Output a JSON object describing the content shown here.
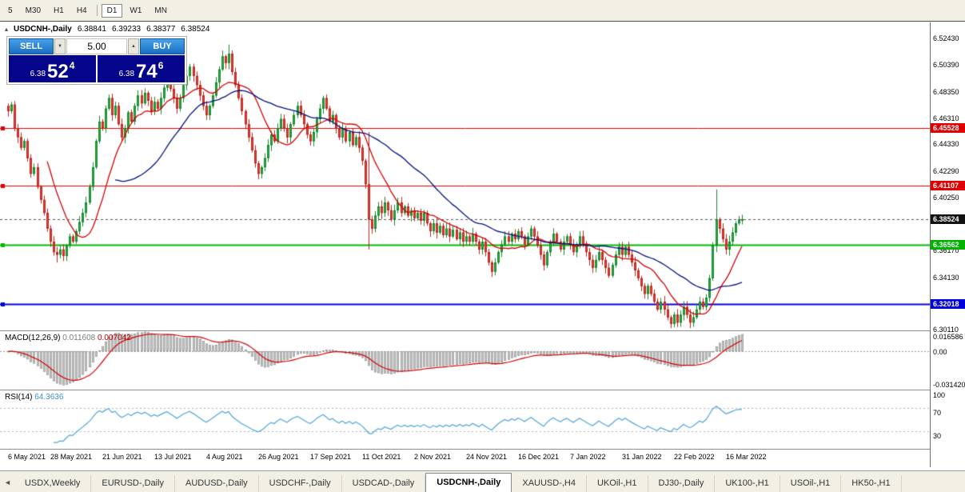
{
  "icons": {
    "collapse": "▴",
    "spin_up": "▲",
    "spin_down": "▼",
    "tab_nav_left": "◄"
  },
  "toolbar": {
    "items": [
      {
        "label": "5"
      },
      {
        "label": "M30"
      },
      {
        "label": "H1"
      },
      {
        "label": "H4"
      },
      {
        "divider": true
      },
      {
        "label": "D1",
        "active": true
      },
      {
        "label": "W1"
      },
      {
        "label": "MN"
      }
    ]
  },
  "chart_header": {
    "title": "USDCNH-,Daily",
    "open": "6.38841",
    "high": "6.39233",
    "low": "6.38377",
    "close": "6.38524"
  },
  "trade_panel": {
    "sell_label": "SELL",
    "buy_label": "BUY",
    "volume": "5.00",
    "sell_price": {
      "prefix": "6.38",
      "big": "52",
      "sup": "4"
    },
    "buy_price": {
      "prefix": "6.38",
      "big": "74",
      "sup": "6"
    }
  },
  "price_axis": {
    "ticks": [
      "6.52430",
      "6.50390",
      "6.48350",
      "6.46310",
      "6.44330",
      "6.42290",
      "6.40250",
      "6.36170",
      "6.34130",
      "6.30110"
    ],
    "badges": [
      {
        "value": "6.45528",
        "price": 6.45528,
        "bg": "#e00000"
      },
      {
        "value": "6.41107",
        "price": 6.41107,
        "bg": "#e00000"
      },
      {
        "value": "6.38524",
        "price": 6.38524,
        "bg": "#111111"
      },
      {
        "value": "6.36562",
        "price": 6.36562,
        "bg": "#00b300"
      },
      {
        "value": "6.32018",
        "price": 6.32018,
        "bg": "#0000dd"
      }
    ]
  },
  "macd_panel": {
    "label": "MACD(12,26,9)",
    "value_main": "0.011608",
    "value_signal": "0.007042",
    "axis_top": "0.016586",
    "axis_zero": "0.00",
    "axis_bottom": "-0.031420",
    "scale_max": 0.016586,
    "scale_min": -0.03142
  },
  "rsi_panel": {
    "label": "RSI(14)",
    "value": "64.3636",
    "axis": [
      "100",
      "70",
      "30"
    ],
    "levels": [
      70,
      30
    ]
  },
  "date_axis": {
    "labels": [
      "6 May 2021",
      "28 May 2021",
      "21 Jun 2021",
      "13 Jul 2021",
      "4 Aug 2021",
      "26 Aug 2021",
      "17 Sep 2021",
      "11 Oct 2021",
      "2 Nov 2021",
      "24 Nov 2021",
      "16 Dec 2021",
      "7 Jan 2022",
      "31 Jan 2022",
      "22 Feb 2022",
      "16 Mar 2022"
    ]
  },
  "tabs": {
    "items": [
      "USDX,Weekly",
      "EURUSD-,Daily",
      "AUDUSD-,Daily",
      "USDCHF-,Daily",
      "USDCAD-,Daily",
      "USDCNH-,Daily",
      "XAUUSD-,H4",
      "UKOil-,H1",
      "DJ30-,Daily",
      "UK100-,H1",
      "USOil-,H1",
      "HK50-,H1"
    ],
    "active_index": 5
  },
  "chart_data": {
    "type": "candlestick",
    "symbol": "USDCNH",
    "timeframe": "Daily",
    "y_range": [
      6.3,
      6.536
    ],
    "last_ohlc": {
      "open": 6.38841,
      "high": 6.39233,
      "low": 6.38377,
      "close": 6.38524
    },
    "closes": [
      6.468,
      6.473,
      6.455,
      6.448,
      6.44,
      6.445,
      6.432,
      6.42,
      6.425,
      6.41,
      6.4,
      6.39,
      6.378,
      6.368,
      6.36,
      6.358,
      6.362,
      6.357,
      6.365,
      6.372,
      6.368,
      6.376,
      6.383,
      6.39,
      6.398,
      6.41,
      6.425,
      6.445,
      6.46,
      6.455,
      6.47,
      6.478,
      6.465,
      6.472,
      6.458,
      6.448,
      6.455,
      6.467,
      6.46,
      6.472,
      6.48,
      6.474,
      6.482,
      6.476,
      6.468,
      6.475,
      6.47,
      6.478,
      6.486,
      6.492,
      6.485,
      6.478,
      6.47,
      6.478,
      6.488,
      6.495,
      6.502,
      6.495,
      6.488,
      6.48,
      6.472,
      6.465,
      6.472,
      6.48,
      6.49,
      6.5,
      6.51,
      6.505,
      6.512,
      6.498,
      6.488,
      6.478,
      6.468,
      6.458,
      6.448,
      6.438,
      6.428,
      6.42,
      6.425,
      6.432,
      6.442,
      6.45,
      6.445,
      6.455,
      6.462,
      6.455,
      6.448,
      6.458,
      6.465,
      6.472,
      6.465,
      6.458,
      6.45,
      6.445,
      6.452,
      6.462,
      6.47,
      6.478,
      6.47,
      6.46,
      6.465,
      6.455,
      6.448,
      6.455,
      6.445,
      6.452,
      6.442,
      6.448,
      6.44,
      6.43,
      6.412,
      6.385,
      6.378,
      6.388,
      6.395,
      6.39,
      6.398,
      6.392,
      6.385,
      6.392,
      6.398,
      6.39,
      6.395,
      6.388,
      6.392,
      6.386,
      6.39,
      6.384,
      6.39,
      6.382,
      6.376,
      6.382,
      6.375,
      6.38,
      6.373,
      6.378,
      6.372,
      6.377,
      6.37,
      6.375,
      6.368,
      6.372,
      6.368,
      6.374,
      6.368,
      6.362,
      6.368,
      6.36,
      6.352,
      6.345,
      6.352,
      6.36,
      6.366,
      6.372,
      6.368,
      6.374,
      6.37,
      6.376,
      6.372,
      6.366,
      6.372,
      6.378,
      6.372,
      6.365,
      6.358,
      6.35,
      6.36,
      6.368,
      6.374,
      6.368,
      6.362,
      6.368,
      6.372,
      6.366,
      6.36,
      6.366,
      6.372,
      6.366,
      6.36,
      6.354,
      6.348,
      6.354,
      6.36,
      6.354,
      6.348,
      6.342,
      6.35,
      6.358,
      6.364,
      6.358,
      6.364,
      6.358,
      6.352,
      6.346,
      6.34,
      6.334,
      6.328,
      6.334,
      6.328,
      6.322,
      6.316,
      6.322,
      6.316,
      6.31,
      6.305,
      6.312,
      6.306,
      6.312,
      6.318,
      6.312,
      6.306,
      6.31,
      6.316,
      6.322,
      6.318,
      6.325,
      6.34,
      6.365,
      6.385,
      6.378,
      6.37,
      6.362,
      6.368,
      6.375,
      6.382,
      6.385,
      6.38524
    ],
    "wick_overrides": {
      "15": {
        "high": 6.364,
        "low": 6.352
      },
      "68": {
        "high": 6.519,
        "low": 6.5
      },
      "111": {
        "high": 6.452,
        "low": 6.362
      },
      "218": {
        "high": 6.408,
        "low": 6.36
      }
    },
    "date_bars": [
      0,
      13,
      29,
      45,
      61,
      77,
      93,
      109,
      125,
      141,
      157,
      173,
      189,
      205,
      221
    ],
    "hlines": [
      {
        "price": 6.45528,
        "color": "#e00000",
        "width": 1
      },
      {
        "price": 6.41107,
        "color": "#e00000",
        "width": 1
      },
      {
        "price": 6.36562,
        "color": "#00bb00",
        "width": 2
      },
      {
        "price": 6.32018,
        "color": "#0000dd",
        "width": 2
      }
    ],
    "current_price": 6.38524,
    "indicators": {
      "ma_fast": {
        "type": "SMA",
        "period": 13,
        "color": "#d40000"
      },
      "ma_slow": {
        "type": "SMA",
        "period": 34,
        "color": "#00127e"
      },
      "macd": {
        "fast": 12,
        "slow": 26,
        "signal": 9
      },
      "rsi": {
        "period": 14
      }
    },
    "style": {
      "up_fill": "#29b043",
      "up_stroke": "#17862e",
      "down_fill": "#ee4037",
      "down_stroke": "#bc241c",
      "macd_bar_fill": "#c6c6c6",
      "macd_bar_stroke": "#909090",
      "macd_signal": "#d40000",
      "rsi_line": "#4da6d9",
      "level_dotted": "#b0b0b0"
    }
  }
}
